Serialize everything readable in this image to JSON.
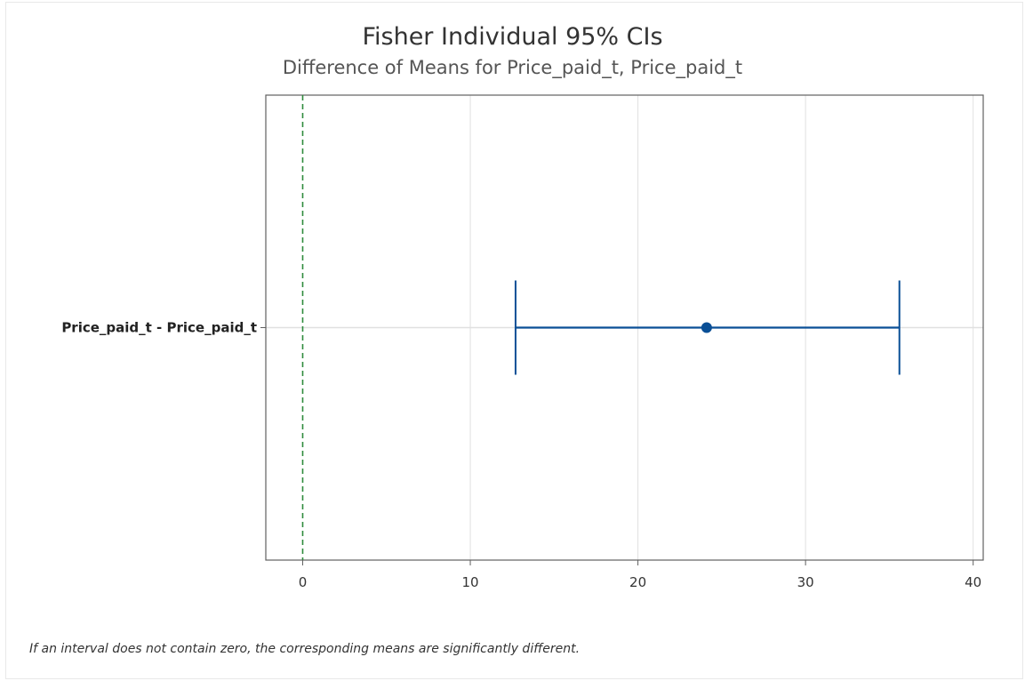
{
  "chart_data": {
    "type": "interval",
    "title": "Fisher Individual 95% CIs",
    "subtitle": "Difference of Means for Price_paid_t, Price_paid_t",
    "xlabel": "",
    "ylabel": "",
    "xlim": [
      -2.2,
      40.6
    ],
    "xticks": [
      0,
      10,
      20,
      30,
      40
    ],
    "grid": true,
    "reference_line": {
      "x": 0,
      "style": "dashed",
      "color": "#2e8b3c"
    },
    "intervals": [
      {
        "label": "Price_paid_t - Price_paid_t",
        "estimate": 24.1,
        "lower": 12.7,
        "upper": 35.6
      }
    ],
    "colors": {
      "interval": "#0a4f96",
      "grid": "#e0e0e0",
      "axis": "#606060"
    }
  },
  "footnote": "If an interval does not contain zero, the corresponding means are significantly different."
}
